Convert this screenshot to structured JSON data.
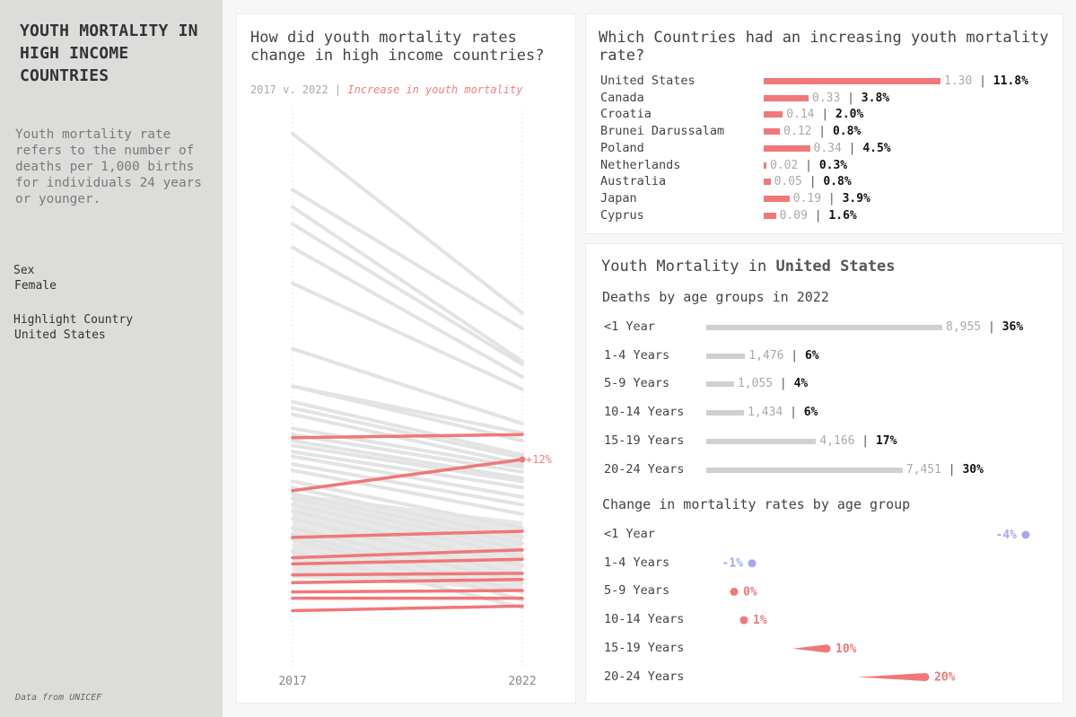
{
  "sidebar": {
    "title": "YOUTH MORTALITY IN HIGH INCOME COUNTRIES",
    "description": "Youth mortality rate refers to the number of deaths per 1,000 births for individuals 24 years or younger.",
    "filters": [
      {
        "label": "Sex",
        "value": "Female"
      },
      {
        "label": "Highlight Country",
        "value": "United States"
      }
    ],
    "source": "Data from UNICEF"
  },
  "slope_panel": {
    "title": "How did youth mortality rates change in high income countries?",
    "subtitle_prefix": "2017 v. 2022 | ",
    "subtitle_highlight": "Increase in youth mortality",
    "highlight_label": "+12%"
  },
  "countries_panel": {
    "title": "Which Countries had an increasing youth mortality rate?"
  },
  "us_panel": {
    "title_prefix": "Youth Mortality in ",
    "title_country": "United States",
    "deaths_heading": "Deaths by age groups in 2022",
    "change_heading": "Change in mortality rates by age group"
  },
  "colors": {
    "increase": "#f07878",
    "decrease": "#a7a7f0",
    "neutral_line": "#e3e3e3",
    "bar_gray": "#d0d0d0"
  },
  "chart_data": [
    {
      "type": "line",
      "x": [
        "2017",
        "2022"
      ],
      "y_scale": "relative (no printed scale)",
      "series_gray": [
        [
          41,
          52.5
        ],
        [
          44.6,
          53.5
        ],
        [
          45.7,
          55.6
        ],
        [
          46.8,
          55.8
        ],
        [
          48.3,
          56.6
        ],
        [
          50.6,
          57.4
        ],
        [
          54.8,
          59.6
        ],
        [
          57.2,
          60.2
        ],
        [
          57.2,
          60.7
        ],
        [
          58.2,
          61.6
        ],
        [
          58.6,
          61.8
        ],
        [
          59,
          62.2
        ],
        [
          59.9,
          62.4
        ],
        [
          60.3,
          62.7
        ],
        [
          60.7,
          63.1
        ],
        [
          61,
          63.3
        ],
        [
          61.4,
          63.7
        ],
        [
          61.7,
          64.3
        ],
        [
          62.2,
          64.8
        ],
        [
          62.6,
          65.4
        ],
        [
          63.3,
          66.3
        ],
        [
          63.7,
          66.9
        ],
        [
          64.1,
          67.3
        ],
        [
          64.4,
          67.7
        ],
        [
          64.8,
          68.1
        ],
        [
          65.2,
          68.7
        ],
        [
          65.7,
          69.3
        ],
        [
          66.3,
          69.8
        ],
        [
          66.7,
          70.4
        ],
        [
          67,
          70.9
        ],
        [
          67.8,
          71.4
        ]
      ],
      "series_highlight": [
        [
          60.5,
          60.3
        ],
        [
          63.9,
          61.9
        ],
        [
          66.9,
          66.5
        ],
        [
          68.2,
          67.7
        ],
        [
          68.6,
          68.3
        ],
        [
          69.3,
          69.2
        ],
        [
          69.8,
          69.6
        ],
        [
          70.4,
          70.3
        ],
        [
          70.8,
          70.8
        ],
        [
          71.6,
          71.3
        ]
      ],
      "highlighted_country": {
        "name": "United States",
        "values": [
          63.9,
          61.9
        ],
        "change_label": "+12%"
      }
    },
    {
      "type": "bar",
      "title": "Which Countries had an increasing youth mortality rate?",
      "categories": [
        "United States",
        "Canada",
        "Croatia",
        "Brunei Darussalam",
        "Poland",
        "Netherlands",
        "Australia",
        "Japan",
        "Cyprus"
      ],
      "values": [
        1.3,
        0.33,
        0.14,
        0.12,
        0.34,
        0.02,
        0.05,
        0.19,
        0.09
      ],
      "labels": [
        "1.30",
        "0.33",
        "0.14",
        "0.12",
        "0.34",
        "0.02",
        "0.05",
        "0.19",
        "0.09"
      ],
      "pct_labels": [
        "11.8%",
        "3.8%",
        "2.0%",
        "0.8%",
        "4.5%",
        "0.3%",
        "0.8%",
        "3.9%",
        "1.6%"
      ]
    },
    {
      "type": "bar",
      "title": "Deaths by age groups in 2022",
      "categories": [
        "<1 Year",
        "1-4 Years",
        "5-9 Years",
        "10-14 Years",
        "15-19 Years",
        "20-24 Years"
      ],
      "values": [
        8955,
        1476,
        1055,
        1434,
        4166,
        7451
      ],
      "labels": [
        "8,955",
        "1,476",
        "1,055",
        "1,434",
        "4,166",
        "7,451"
      ],
      "pct_labels": [
        "36%",
        "6%",
        "4%",
        "6%",
        "17%",
        "30%"
      ]
    },
    {
      "type": "scatter",
      "title": "Change in mortality rates by age group",
      "categories": [
        "<1 Year",
        "1-4 Years",
        "5-9 Years",
        "10-14 Years",
        "15-19 Years",
        "20-24 Years"
      ],
      "values": [
        -4,
        -1,
        0,
        1,
        10,
        20
      ],
      "labels": [
        "-4%",
        "-1%",
        "0%",
        "1%",
        "10%",
        "20%"
      ]
    }
  ]
}
